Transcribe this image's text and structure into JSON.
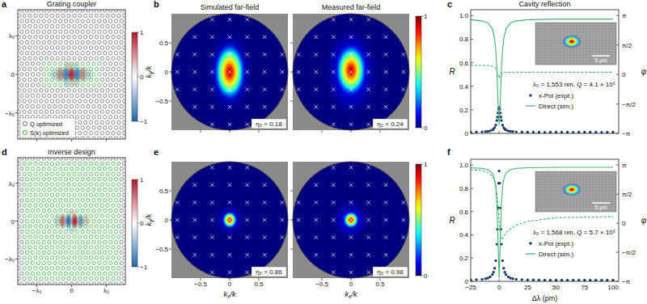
{
  "chart_data": [
    {
      "panel": "a",
      "type": "field_map",
      "title": "Grating coupler",
      "xlim": [
        -1.55,
        1.55
      ],
      "ylim": [
        -1.68,
        1.68
      ],
      "xticks": [
        {
          "value": -1,
          "label": "−λ₀"
        },
        0,
        {
          "value": 1,
          "label": "λ₀"
        }
      ],
      "yticks": [
        {
          "value": 1,
          "label": "λ₀"
        },
        0,
        {
          "value": -1,
          "label": "−λ₀"
        }
      ],
      "tick_labels": "y",
      "legend": "lower left",
      "series": [
        {
          "name": "Q optimized",
          "color": "#707070",
          "marker": "circle"
        },
        {
          "name": "S(k) optimized",
          "color": "#3fae49",
          "marker": "circle",
          "region": [
            -0.8,
            0.8,
            -0.35,
            0.35
          ]
        }
      ],
      "spots": [
        {
          "x": -0.5,
          "y": 0,
          "rx": 0.08,
          "ry": 0.12,
          "value": -0.3
        },
        {
          "x": -0.33,
          "y": 0,
          "rx": 0.08,
          "ry": 0.14,
          "value": 0.6
        },
        {
          "x": -0.16,
          "y": 0,
          "rx": 0.08,
          "ry": 0.15,
          "value": -0.9
        },
        {
          "x": 0,
          "y": 0,
          "rx": 0.08,
          "ry": 0.15,
          "value": 1
        },
        {
          "x": 0.16,
          "y": 0,
          "rx": 0.08,
          "ry": 0.15,
          "value": -0.9
        },
        {
          "x": 0.33,
          "y": 0,
          "rx": 0.08,
          "ry": 0.14,
          "value": 0.6
        },
        {
          "x": 0.5,
          "y": 0,
          "rx": 0.08,
          "ry": 0.12,
          "value": -0.3
        },
        {
          "x": -0.1,
          "y": 0.24,
          "rx": 0.1,
          "ry": 0.07,
          "value": 0.25
        },
        {
          "x": 0.1,
          "y": 0.24,
          "rx": 0.1,
          "ry": 0.07,
          "value": -0.25
        },
        {
          "x": -0.1,
          "y": -0.24,
          "rx": 0.1,
          "ry": 0.07,
          "value": -0.25
        },
        {
          "x": 0.1,
          "y": -0.24,
          "rx": 0.1,
          "ry": 0.07,
          "value": 0.25
        }
      ],
      "colorbar": {
        "range": [
          -1,
          1
        ],
        "ticks": [
          1,
          0,
          {
            "value": -1,
            "label": "−1"
          }
        ]
      }
    },
    {
      "panel": "b",
      "type": "far_field",
      "title": "Simulated far-field",
      "xlim": [
        -1,
        1
      ],
      "ylim": [
        -1,
        1
      ],
      "xticks": [
        {
          "value": -0.5,
          "label": "−0.5"
        },
        0,
        0.5
      ],
      "yticks": [
        0.5,
        0,
        {
          "value": -0.5,
          "label": "−0.5"
        }
      ],
      "tick_labels": "y",
      "ylabel": "ky/k",
      "annotation": "η₀ = 0.18",
      "crosses": {
        "kx": [
          -0.9,
          -0.6,
          -0.3,
          0,
          0.3,
          0.6,
          0.9
        ],
        "ky": [
          -0.9,
          -0.6,
          -0.3,
          0,
          0.3,
          0.6,
          0.9
        ]
      },
      "spots": [
        {
          "x": 0,
          "y": 0,
          "rx": 0.45,
          "ry": 0.8,
          "value": 0.12
        },
        {
          "x": 0,
          "y": 0,
          "rx": 0.3,
          "ry": 0.55,
          "value": 1
        }
      ]
    },
    {
      "type": "far_field",
      "title": "Measured far-field",
      "xlim": [
        -1,
        1
      ],
      "ylim": [
        -1,
        1
      ],
      "xticks": [
        {
          "value": -0.5,
          "label": "−0.5"
        },
        0,
        0.5
      ],
      "yticks": [
        0.5,
        0,
        {
          "value": -0.5,
          "label": "−0.5"
        }
      ],
      "tick_labels": false,
      "annotation": "η₀ = 0.24",
      "crosses": {
        "kx": [
          -0.9,
          -0.6,
          -0.3,
          0,
          0.3,
          0.6,
          0.9
        ],
        "ky": [
          -0.9,
          -0.6,
          -0.3,
          0,
          0.3,
          0.6,
          0.9
        ]
      },
      "spots": [
        {
          "x": 0,
          "y": 0,
          "rx": 0.5,
          "ry": 0.85,
          "value": 0.15
        },
        {
          "x": 0,
          "y": 0.03,
          "rx": 0.3,
          "ry": 0.5,
          "value": 1
        }
      ],
      "colorbar": {
        "range": [
          0,
          1
        ],
        "ticks": [
          1,
          0
        ]
      }
    },
    {
      "panel": "c",
      "type": "line",
      "title": "Cavity reflection",
      "xlim": [
        -25,
        105
      ],
      "ylim": [
        0,
        1.05
      ],
      "y2lim": [
        -3.1416,
        3.4558
      ],
      "xticks": [
        {
          "value": -25,
          "label": "−25"
        },
        0,
        25,
        50,
        75,
        100
      ],
      "yticks": [
        0,
        0.2,
        0.4,
        0.6,
        0.8,
        {
          "value": 1,
          "label": "1.0"
        }
      ],
      "y2ticks": [
        {
          "value": 3.1416,
          "label": "π"
        },
        {
          "value": 1.5708,
          "label": "π/2"
        },
        0,
        {
          "value": -1.5708,
          "label": "−π/2"
        },
        {
          "value": -3.1416,
          "label": "−π"
        }
      ],
      "tick_labels": "y",
      "ylabel": "R",
      "y2label": "φ",
      "annotation": "λ₀ = 1,553 nm, Q = 4.1 × 10⁵",
      "legend": "lower right",
      "inset": {
        "scale_bar": "5 μm"
      },
      "series": [
        {
          "name": "x-Pol (expt.)",
          "type": "scatter",
          "marker": "circle",
          "color": "#1d3c6e",
          "x": [
            -25,
            -20,
            -15,
            -12,
            -10,
            -8,
            -6,
            -5,
            -4,
            -3,
            -2,
            -1.5,
            -1,
            -0.5,
            0,
            0.5,
            1,
            1.5,
            2,
            3,
            4,
            5,
            6,
            8,
            10,
            12,
            15,
            20,
            25,
            30,
            35,
            40,
            45,
            50,
            55,
            60,
            65,
            70,
            75,
            80,
            85,
            90,
            95,
            100
          ],
          "values": [
            0.01,
            0.012,
            0.013,
            0.015,
            0.017,
            0.021,
            0.029,
            0.036,
            0.049,
            0.07,
            0.11,
            0.139,
            0.174,
            0.206,
            0.22,
            0.206,
            0.174,
            0.139,
            0.11,
            0.07,
            0.049,
            0.036,
            0.029,
            0.021,
            0.017,
            0.015,
            0.013,
            0.012,
            0.01,
            0.011,
            0.01,
            0.009,
            0.01,
            0.011,
            0.01,
            0.01,
            0.009,
            0.01,
            0.011,
            0.01,
            0.01,
            0.009,
            0.01,
            0.01
          ]
        },
        {
          "name": "Direct (sim.)",
          "type": "line",
          "line_style": "solid",
          "color": "#3cb371",
          "x": [
            -25,
            -15,
            -10,
            -6,
            -4,
            -3,
            -2,
            -1,
            0,
            1,
            2,
            3,
            4,
            6,
            10,
            15,
            25,
            50,
            75,
            100
          ],
          "values": [
            0.965,
            0.955,
            0.939,
            0.888,
            0.804,
            0.712,
            0.539,
            0.265,
            0.07,
            0.265,
            0.539,
            0.712,
            0.804,
            0.888,
            0.939,
            0.955,
            0.965,
            0.97,
            0.97,
            0.97
          ]
        },
        {
          "type": "line",
          "line_style": "dashed",
          "color": "#3cb371",
          "axis": "y2",
          "x": [
            -25,
            -15,
            -10,
            -6,
            -4,
            -3,
            -2,
            -1,
            0,
            1,
            2,
            3,
            4,
            6,
            10,
            15,
            25,
            50,
            75,
            100
          ],
          "values": [
            0.5,
            0.49,
            0.48,
            0.44,
            0.4,
            0.32,
            0.2,
            0,
            -0.2,
            -0.05,
            0.05,
            0.08,
            0.1,
            0.11,
            0.12,
            0.12,
            0.12,
            0.12,
            0.12,
            0.12
          ]
        }
      ]
    },
    {
      "panel": "d",
      "type": "field_map",
      "title": "Inverse design",
      "xlim": [
        -1.55,
        1.55
      ],
      "ylim": [
        -1.68,
        1.68
      ],
      "xticks": [
        {
          "value": -1,
          "label": "−λ₀"
        },
        0,
        {
          "value": 1,
          "label": "λ₀"
        }
      ],
      "yticks": [
        {
          "value": 1,
          "label": "λ₀"
        },
        0,
        {
          "value": -1,
          "label": "−λ₀"
        }
      ],
      "tick_labels": true,
      "series": [
        {
          "color": "#707070",
          "marker": "circle"
        },
        {
          "color": "#3fae49",
          "marker": "circle",
          "region": [
            -1.4,
            1.4,
            -1.55,
            1.55
          ]
        }
      ],
      "spots": [
        {
          "x": -0.42,
          "y": 0,
          "rx": 0.07,
          "ry": 0.12,
          "value": -0.3
        },
        {
          "x": -0.26,
          "y": 0,
          "rx": 0.07,
          "ry": 0.13,
          "value": 0.75
        },
        {
          "x": -0.09,
          "y": 0,
          "rx": 0.07,
          "ry": 0.14,
          "value": -1
        },
        {
          "x": 0.09,
          "y": 0,
          "rx": 0.07,
          "ry": 0.14,
          "value": 1
        },
        {
          "x": 0.26,
          "y": 0,
          "rx": 0.07,
          "ry": 0.13,
          "value": -0.75
        },
        {
          "x": 0.42,
          "y": 0,
          "rx": 0.07,
          "ry": 0.12,
          "value": 0.3
        },
        {
          "x": 0,
          "y": 0.22,
          "rx": 0.12,
          "ry": 0.06,
          "value": 0.2
        },
        {
          "x": 0,
          "y": -0.22,
          "rx": 0.12,
          "ry": 0.06,
          "value": -0.2
        }
      ],
      "colorbar": {
        "range": [
          -1,
          1
        ],
        "ticks": [
          1,
          0,
          {
            "value": -1,
            "label": "−1"
          }
        ]
      }
    },
    {
      "panel": "e",
      "type": "far_field",
      "xlim": [
        -1,
        1
      ],
      "ylim": [
        -1,
        1
      ],
      "xticks": [
        {
          "value": -0.5,
          "label": "−0.5"
        },
        0,
        0.5
      ],
      "yticks": [
        0.5,
        0,
        {
          "value": -0.5,
          "label": "−0.5"
        }
      ],
      "tick_labels": true,
      "xlabel": "kx/k",
      "ylabel": "ky/k",
      "annotation": "η₀ = 0.86",
      "crosses": {
        "kx": [
          -0.9,
          -0.6,
          -0.3,
          0,
          0.3,
          0.6,
          0.9
        ],
        "ky": [
          -0.9,
          -0.6,
          -0.3,
          0,
          0.3,
          0.6,
          0.9
        ]
      },
      "spots": [
        {
          "x": 0,
          "y": 0,
          "rx": 0.3,
          "ry": 0.3,
          "value": 0.1
        },
        {
          "x": 0,
          "y": 0,
          "rx": 0.14,
          "ry": 0.16,
          "value": 1
        }
      ]
    },
    {
      "type": "far_field",
      "xlim": [
        -1,
        1
      ],
      "ylim": [
        -1,
        1
      ],
      "xticks": [
        {
          "value": -0.5,
          "label": "−0.5"
        },
        0,
        0.5
      ],
      "yticks": [
        0.5,
        0,
        {
          "value": -0.5,
          "label": "−0.5"
        }
      ],
      "tick_labels": "x",
      "xlabel": "kx/k",
      "annotation": "η₀ = 0.98",
      "crosses": {
        "kx": [
          -0.9,
          -0.6,
          -0.3,
          0,
          0.3,
          0.6,
          0.9
        ],
        "ky": [
          -0.9,
          -0.6,
          -0.3,
          0,
          0.3,
          0.6,
          0.9
        ]
      },
      "spots": [
        {
          "x": 0,
          "y": 0,
          "rx": 0.35,
          "ry": 0.35,
          "value": 0.12
        },
        {
          "x": 0,
          "y": 0,
          "rx": 0.15,
          "ry": 0.16,
          "value": 1
        }
      ],
      "colorbar": {
        "range": [
          0,
          1
        ],
        "ticks": [
          1,
          0
        ]
      }
    },
    {
      "panel": "f",
      "type": "line",
      "xlim": [
        -25,
        105
      ],
      "ylim": [
        0,
        1.05
      ],
      "y2lim": [
        -3.1416,
        3.4558
      ],
      "xticks": [
        {
          "value": -25,
          "label": "−25"
        },
        0,
        25,
        50,
        75,
        100
      ],
      "yticks": [
        0,
        0.2,
        0.4,
        0.6,
        0.8,
        {
          "value": 1,
          "label": "1.0"
        }
      ],
      "y2ticks": [
        {
          "value": 3.1416,
          "label": "π"
        },
        {
          "value": 1.5708,
          "label": "π/2"
        },
        0,
        {
          "value": -1.5708,
          "label": "−π/2"
        },
        {
          "value": -3.1416,
          "label": "−π"
        }
      ],
      "tick_labels": true,
      "xlabel": "Δλ (pm)",
      "ylabel": "R",
      "y2label": "φ",
      "annotation": "λ₀ = 1,568 nm, Q = 5.7 × 10⁵",
      "legend": "lower right",
      "inset": {
        "scale_bar": "5 μm"
      },
      "series": [
        {
          "name": "x-Pol (expt.)",
          "type": "scatter",
          "marker": "circle",
          "color": "#1d3c6e",
          "x": [
            -25,
            -20,
            -15,
            -12,
            -10,
            -8,
            -6,
            -5,
            -4,
            -3,
            -2,
            -1.5,
            -1,
            -0.5,
            0,
            0.5,
            1,
            1.5,
            2,
            3,
            4,
            5,
            6,
            8,
            10,
            12,
            15,
            20,
            25,
            30,
            35,
            40,
            45,
            50,
            55,
            60,
            65,
            70,
            75,
            80,
            85,
            90,
            95,
            100
          ],
          "values": [
            0.013,
            0.015,
            0.018,
            0.023,
            0.028,
            0.038,
            0.058,
            0.078,
            0.113,
            0.178,
            0.319,
            0.448,
            0.632,
            0.844,
            0.95,
            0.844,
            0.632,
            0.448,
            0.319,
            0.178,
            0.113,
            0.078,
            0.058,
            0.038,
            0.028,
            0.023,
            0.018,
            0.015,
            0.013,
            0.012,
            0.011,
            0.011,
            0.01,
            0.01,
            0.01,
            0.01,
            0.01,
            0.01,
            0.01,
            0.01,
            0.01,
            0.01,
            0.01,
            0.01
          ]
        },
        {
          "name": "Direct (sim.)",
          "type": "line",
          "line_style": "solid",
          "color": "#3cb371",
          "x": [
            -25,
            -15,
            -10,
            -6,
            -4,
            -3,
            -2,
            -1,
            0,
            1,
            2,
            3,
            4,
            6,
            10,
            15,
            25,
            50,
            75,
            100
          ],
          "values": [
            0.977,
            0.972,
            0.962,
            0.932,
            0.877,
            0.812,
            0.671,
            0.351,
            0.03,
            0.351,
            0.671,
            0.812,
            0.877,
            0.932,
            0.962,
            0.972,
            0.977,
            0.98,
            0.98,
            0.98
          ]
        },
        {
          "type": "line",
          "line_style": "dashed",
          "color": "#3cb371",
          "axis": "y2",
          "x": [
            -25,
            -15,
            -10,
            -6,
            -4,
            -3,
            -2,
            -1,
            0,
            1,
            2,
            3,
            4,
            6,
            10,
            15,
            25,
            50,
            75,
            100
          ],
          "values": [
            2.9,
            2.85,
            2.75,
            2.55,
            2.3,
            2.05,
            1.6,
            0.9,
            0.1,
            -0.6,
            -0.9,
            -0.85,
            -0.7,
            -0.5,
            -0.3,
            -0.1,
            0.1,
            0.3,
            0.33,
            0.35
          ]
        }
      ]
    }
  ]
}
